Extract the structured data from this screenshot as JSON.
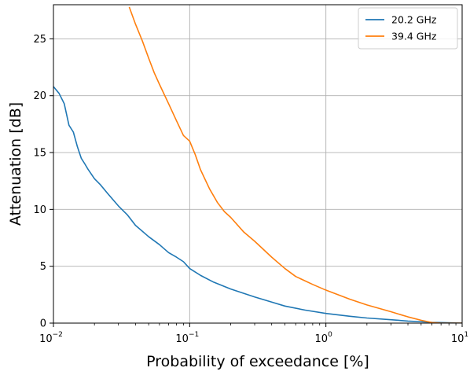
{
  "chart_data": {
    "type": "line",
    "xlabel": "Probability of exceedance [%]",
    "ylabel": "Attenuation [dB]",
    "xscale": "log",
    "xlim": [
      0.01,
      10
    ],
    "ylim": [
      0,
      28
    ],
    "grid": true,
    "legend_position": "top-right",
    "x_ticks": [
      {
        "value": 0.01,
        "base": "10",
        "exp": "−2"
      },
      {
        "value": 0.1,
        "base": "10",
        "exp": "−1"
      },
      {
        "value": 1,
        "base": "10",
        "exp": "0"
      },
      {
        "value": 10,
        "base": "10",
        "exp": "1"
      }
    ],
    "y_ticks": [
      0,
      5,
      10,
      15,
      20,
      25
    ],
    "series": [
      {
        "name": "20.2 GHz",
        "color": "#1f77b4",
        "x": [
          0.01,
          0.011,
          0.012,
          0.013,
          0.014,
          0.015,
          0.016,
          0.017,
          0.018,
          0.02,
          0.022,
          0.025,
          0.03,
          0.035,
          0.04,
          0.05,
          0.06,
          0.07,
          0.08,
          0.09,
          0.1,
          0.12,
          0.15,
          0.2,
          0.3,
          0.4,
          0.5,
          0.7,
          1.0,
          1.5,
          2.0,
          3.0,
          4.0,
          5.0,
          6.0,
          7.0,
          10.0
        ],
        "y": [
          20.8,
          20.2,
          19.3,
          17.4,
          16.8,
          15.5,
          14.5,
          14.0,
          13.5,
          12.7,
          12.2,
          11.4,
          10.3,
          9.5,
          8.6,
          7.6,
          6.9,
          6.2,
          5.8,
          5.4,
          4.8,
          4.2,
          3.6,
          3.0,
          2.3,
          1.85,
          1.5,
          1.15,
          0.85,
          0.6,
          0.45,
          0.3,
          0.18,
          0.12,
          0.07,
          0.05,
          0.0
        ]
      },
      {
        "name": "39.4 GHz",
        "color": "#ff7f0e",
        "x": [
          0.036,
          0.04,
          0.045,
          0.05,
          0.055,
          0.06,
          0.07,
          0.08,
          0.09,
          0.1,
          0.11,
          0.12,
          0.14,
          0.16,
          0.18,
          0.2,
          0.25,
          0.3,
          0.4,
          0.5,
          0.6,
          0.8,
          1.0,
          1.5,
          2.0,
          3.0,
          4.0,
          5.0,
          6.0,
          7.0,
          10.0
        ],
        "y": [
          27.8,
          26.3,
          24.8,
          23.3,
          22.0,
          21.0,
          19.3,
          17.8,
          16.5,
          16.0,
          14.8,
          13.5,
          11.8,
          10.6,
          9.8,
          9.3,
          8.0,
          7.2,
          5.8,
          4.8,
          4.1,
          3.4,
          2.9,
          2.1,
          1.6,
          1.0,
          0.55,
          0.25,
          0.05,
          0.0,
          0.0
        ]
      }
    ]
  }
}
